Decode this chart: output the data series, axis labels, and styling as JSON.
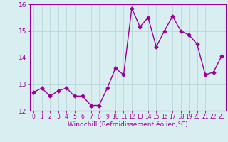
{
  "x": [
    0,
    1,
    2,
    3,
    4,
    5,
    6,
    7,
    8,
    9,
    10,
    11,
    12,
    13,
    14,
    15,
    16,
    17,
    18,
    19,
    20,
    21,
    22,
    23
  ],
  "y": [
    12.7,
    12.85,
    12.55,
    12.75,
    12.85,
    12.55,
    12.55,
    12.2,
    12.2,
    12.85,
    13.6,
    13.35,
    15.85,
    15.15,
    15.5,
    14.4,
    15.0,
    15.55,
    15.0,
    14.85,
    14.5,
    13.35,
    13.45,
    14.05
  ],
  "line_color": "#990099",
  "marker": "D",
  "markersize": 2.5,
  "linewidth": 1.0,
  "bg_color": "#d8eef0",
  "grid_color": "#b8d8dc",
  "xlabel": "Windchill (Refroidissement éolien,°C)",
  "xlabel_color": "#990099",
  "tick_color": "#990099",
  "ylim": [
    12,
    16
  ],
  "xlim_min": -0.5,
  "xlim_max": 23.5,
  "yticks": [
    12,
    13,
    14,
    15,
    16
  ],
  "xticks": [
    0,
    1,
    2,
    3,
    4,
    5,
    6,
    7,
    8,
    9,
    10,
    11,
    12,
    13,
    14,
    15,
    16,
    17,
    18,
    19,
    20,
    21,
    22,
    23
  ],
  "spine_color": "#990099",
  "xtick_fontsize": 5.5,
  "ytick_fontsize": 6.5,
  "xlabel_fontsize": 6.5
}
